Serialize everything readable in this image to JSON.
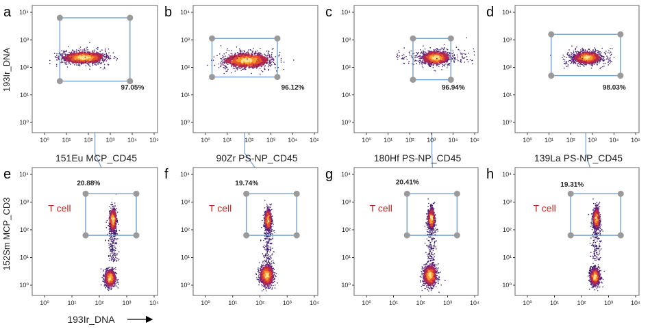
{
  "colors": {
    "gate": "#6f9fcf",
    "handle": "#9a9a9a",
    "tcell": "#c0261f",
    "frame": "#666666"
  },
  "chart_data": [
    {
      "panel": "a",
      "type": "scatter",
      "xlabel": "151Eu MCP_CD45",
      "ylabel": "193Ir_DNA",
      "x_ticks": [
        "10⁰",
        "10¹",
        "10²",
        "10³",
        "10⁴",
        "10⁵"
      ],
      "y_ticks": [
        "10⁰",
        "10¹",
        "10²",
        "10³",
        "10⁴"
      ],
      "xlim": [
        0,
        5
      ],
      "ylim": [
        0,
        4
      ],
      "gate": {
        "x": [
          0.7,
          3.9
        ],
        "y": [
          1.5,
          3.8
        ]
      },
      "gate_pct": "97.05%",
      "clusters": [
        {
          "x": 1.8,
          "y": 2.35,
          "sx": 0.55,
          "sy": 0.12,
          "spread_x": 0.9
        }
      ]
    },
    {
      "panel": "b",
      "type": "scatter",
      "xlabel": "90Zr PS-NP_CD45",
      "x_ticks": [
        "10⁰",
        "10¹",
        "10²",
        "10³",
        "10⁴",
        "10⁵"
      ],
      "y_ticks": [
        "10⁰",
        "10¹",
        "10²",
        "10³",
        "10⁴"
      ],
      "xlim": [
        0,
        5
      ],
      "ylim": [
        0,
        4
      ],
      "gate": {
        "x": [
          0.3,
          3.3
        ],
        "y": [
          1.65,
          3.05
        ]
      },
      "gate_pct": "96.12%",
      "clusters": [
        {
          "x": 1.9,
          "y": 2.25,
          "sx": 0.6,
          "sy": 0.15,
          "spread_x": 0.9
        }
      ]
    },
    {
      "panel": "c",
      "type": "scatter",
      "xlabel": "180Hf PS-NP_CD45",
      "x_ticks": [
        "10⁰",
        "10¹",
        "10²",
        "10³",
        "10⁴",
        "10⁵"
      ],
      "y_ticks": [
        "10⁰",
        "10¹",
        "10²",
        "10³",
        "10⁴"
      ],
      "xlim": [
        0,
        5
      ],
      "ylim": [
        0,
        4
      ],
      "gate": {
        "x": [
          2.15,
          3.9
        ],
        "y": [
          1.55,
          3.05
        ]
      },
      "gate_pct": "96.94%",
      "clusters": [
        {
          "x": 3.2,
          "y": 2.35,
          "sx": 0.35,
          "sy": 0.13,
          "spread_x": 1.4
        }
      ]
    },
    {
      "panel": "d",
      "type": "scatter",
      "xlabel": "139La PS-NP_CD45",
      "x_ticks": [
        "10⁰",
        "10¹",
        "10²",
        "10³",
        "10⁴",
        "10⁵"
      ],
      "y_ticks": [
        "10⁰",
        "10¹",
        "10²",
        "10³",
        "10⁴"
      ],
      "xlim": [
        0,
        5
      ],
      "ylim": [
        0,
        4
      ],
      "gate": {
        "x": [
          1.1,
          4.3
        ],
        "y": [
          1.7,
          3.2
        ]
      },
      "gate_pct": "98.03%",
      "clusters": [
        {
          "x": 2.75,
          "y": 2.35,
          "sx": 0.35,
          "sy": 0.12,
          "spread_x": 0.9
        }
      ]
    },
    {
      "panel": "e",
      "type": "scatter",
      "xlabel": "193Ir_DNA",
      "ylabel": "152Sm MCP_CD3",
      "x_ticks": [
        "10⁰",
        "10¹",
        "10²",
        "10³",
        "10⁴"
      ],
      "y_ticks": [
        "10⁰",
        "10¹",
        "10²",
        "10³",
        "10⁴"
      ],
      "xlim": [
        0,
        4
      ],
      "ylim": [
        0,
        4
      ],
      "gate": {
        "x": [
          1.5,
          3.35
        ],
        "y": [
          1.8,
          3.3
        ]
      },
      "gate_pct": "20.88%",
      "gate_label": "T cell",
      "clusters": [
        {
          "x": 2.5,
          "y": 2.35,
          "sx": 0.06,
          "sy": 0.22
        },
        {
          "x": 2.4,
          "y": 0.25,
          "sx": 0.1,
          "sy": 0.16
        }
      ]
    },
    {
      "panel": "f",
      "type": "scatter",
      "x_ticks": [
        "10⁰",
        "10¹",
        "10²",
        "10³",
        "10⁴"
      ],
      "y_ticks": [
        "10⁰",
        "10¹",
        "10²",
        "10³",
        "10⁴"
      ],
      "xlim": [
        0,
        4
      ],
      "ylim": [
        0,
        4
      ],
      "gate": {
        "x": [
          1.5,
          3.35
        ],
        "y": [
          1.8,
          3.3
        ]
      },
      "gate_pct": "19.74%",
      "gate_label": "T cell",
      "clusters": [
        {
          "x": 2.3,
          "y": 2.35,
          "sx": 0.06,
          "sy": 0.2
        },
        {
          "x": 2.25,
          "y": 0.35,
          "sx": 0.13,
          "sy": 0.2
        }
      ]
    },
    {
      "panel": "g",
      "type": "scatter",
      "x_ticks": [
        "10⁰",
        "10¹",
        "10²",
        "10³",
        "10⁴"
      ],
      "y_ticks": [
        "10⁰",
        "10¹",
        "10²",
        "10³",
        "10⁴"
      ],
      "xlim": [
        0,
        4
      ],
      "ylim": [
        0,
        4
      ],
      "gate": {
        "x": [
          1.5,
          3.35
        ],
        "y": [
          1.8,
          3.3
        ]
      },
      "gate_pct": "20.41%",
      "gate_label": "T cell",
      "clusters": [
        {
          "x": 2.4,
          "y": 2.4,
          "sx": 0.06,
          "sy": 0.2
        },
        {
          "x": 2.35,
          "y": 0.35,
          "sx": 0.13,
          "sy": 0.2
        }
      ]
    },
    {
      "panel": "h",
      "type": "scatter",
      "x_ticks": [
        "10⁰",
        "10¹",
        "10²",
        "10³",
        "10⁴"
      ],
      "y_ticks": [
        "10⁰",
        "10¹",
        "10²",
        "10³",
        "10⁴"
      ],
      "xlim": [
        0,
        4
      ],
      "ylim": [
        0,
        4
      ],
      "gate": {
        "x": [
          1.6,
          3.45
        ],
        "y": [
          1.8,
          3.3
        ]
      },
      "gate_pct": "19.31%",
      "gate_label": "T cell",
      "clusters": [
        {
          "x": 2.55,
          "y": 2.4,
          "sx": 0.06,
          "sy": 0.2
        },
        {
          "x": 2.5,
          "y": 0.3,
          "sx": 0.09,
          "sy": 0.16
        }
      ]
    }
  ]
}
